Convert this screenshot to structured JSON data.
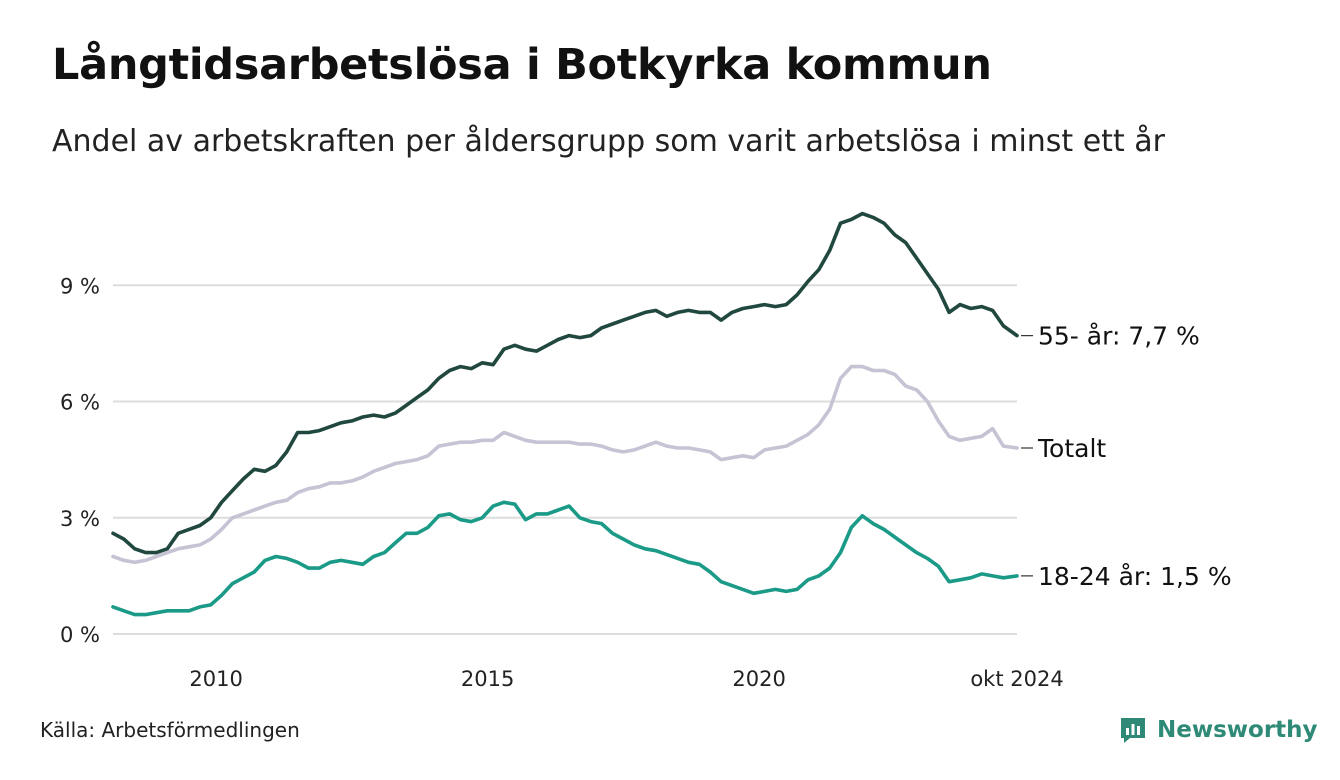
{
  "title": "Långtidsarbetslösa i Botkyrka kommun",
  "subtitle": "Andel av arbetskraften per åldersgrupp som varit arbetslösa i minst ett år",
  "source": "Källa: Arbetsförmedlingen",
  "brand": "Newsworthy",
  "colors": {
    "older": "#21483f",
    "total": "#c6c3d4",
    "young": "#1a9a87",
    "grid": "#dddddd",
    "brand": "#2e8a77"
  },
  "chart_data": {
    "type": "line",
    "title": "Långtidsarbetslösa i Botkyrka kommun",
    "xlabel": "",
    "ylabel": "",
    "x_range": [
      2008.1,
      2024.75
    ],
    "ylim": [
      0,
      11.2
    ],
    "y_ticks": [
      0,
      3,
      6,
      9
    ],
    "y_tick_labels": [
      "0 %",
      "3 %",
      "6 %",
      "9 %"
    ],
    "x_ticks": [
      2010,
      2015,
      2020,
      2024.75
    ],
    "x_tick_labels": [
      "2010",
      "2015",
      "2020",
      "okt 2024"
    ],
    "grid": true,
    "series": [
      {
        "name": "55- år",
        "end_label": "55- år: 7,7 %",
        "color_key": "older",
        "points": [
          [
            2008.1,
            2.6
          ],
          [
            2008.3,
            2.45
          ],
          [
            2008.5,
            2.2
          ],
          [
            2008.7,
            2.1
          ],
          [
            2008.9,
            2.1
          ],
          [
            2009.1,
            2.2
          ],
          [
            2009.3,
            2.6
          ],
          [
            2009.5,
            2.7
          ],
          [
            2009.7,
            2.8
          ],
          [
            2009.9,
            3.0
          ],
          [
            2010.1,
            3.4
          ],
          [
            2010.3,
            3.7
          ],
          [
            2010.5,
            4.0
          ],
          [
            2010.7,
            4.25
          ],
          [
            2010.9,
            4.2
          ],
          [
            2011.1,
            4.35
          ],
          [
            2011.3,
            4.7
          ],
          [
            2011.5,
            5.2
          ],
          [
            2011.7,
            5.2
          ],
          [
            2011.9,
            5.25
          ],
          [
            2012.1,
            5.35
          ],
          [
            2012.3,
            5.45
          ],
          [
            2012.5,
            5.5
          ],
          [
            2012.7,
            5.6
          ],
          [
            2012.9,
            5.65
          ],
          [
            2013.1,
            5.6
          ],
          [
            2013.3,
            5.7
          ],
          [
            2013.5,
            5.9
          ],
          [
            2013.7,
            6.1
          ],
          [
            2013.9,
            6.3
          ],
          [
            2014.1,
            6.6
          ],
          [
            2014.3,
            6.8
          ],
          [
            2014.5,
            6.9
          ],
          [
            2014.7,
            6.85
          ],
          [
            2014.9,
            7.0
          ],
          [
            2015.1,
            6.95
          ],
          [
            2015.3,
            7.35
          ],
          [
            2015.5,
            7.45
          ],
          [
            2015.7,
            7.35
          ],
          [
            2015.9,
            7.3
          ],
          [
            2016.1,
            7.45
          ],
          [
            2016.3,
            7.6
          ],
          [
            2016.5,
            7.7
          ],
          [
            2016.7,
            7.65
          ],
          [
            2016.9,
            7.7
          ],
          [
            2017.1,
            7.9
          ],
          [
            2017.3,
            8.0
          ],
          [
            2017.5,
            8.1
          ],
          [
            2017.7,
            8.2
          ],
          [
            2017.9,
            8.3
          ],
          [
            2018.1,
            8.35
          ],
          [
            2018.3,
            8.2
          ],
          [
            2018.5,
            8.3
          ],
          [
            2018.7,
            8.35
          ],
          [
            2018.9,
            8.3
          ],
          [
            2019.1,
            8.3
          ],
          [
            2019.3,
            8.1
          ],
          [
            2019.5,
            8.3
          ],
          [
            2019.7,
            8.4
          ],
          [
            2019.9,
            8.45
          ],
          [
            2020.1,
            8.5
          ],
          [
            2020.3,
            8.45
          ],
          [
            2020.5,
            8.5
          ],
          [
            2020.7,
            8.75
          ],
          [
            2020.9,
            9.1
          ],
          [
            2021.1,
            9.4
          ],
          [
            2021.3,
            9.9
          ],
          [
            2021.5,
            10.6
          ],
          [
            2021.7,
            10.7
          ],
          [
            2021.9,
            10.85
          ],
          [
            2022.1,
            10.75
          ],
          [
            2022.3,
            10.6
          ],
          [
            2022.5,
            10.3
          ],
          [
            2022.7,
            10.1
          ],
          [
            2022.9,
            9.7
          ],
          [
            2023.1,
            9.3
          ],
          [
            2023.3,
            8.9
          ],
          [
            2023.5,
            8.3
          ],
          [
            2023.7,
            8.5
          ],
          [
            2023.9,
            8.4
          ],
          [
            2024.1,
            8.45
          ],
          [
            2024.3,
            8.35
          ],
          [
            2024.5,
            7.95
          ],
          [
            2024.75,
            7.7
          ]
        ]
      },
      {
        "name": "Totalt",
        "end_label": "Totalt",
        "color_key": "total",
        "points": [
          [
            2008.1,
            2.0
          ],
          [
            2008.3,
            1.9
          ],
          [
            2008.5,
            1.85
          ],
          [
            2008.7,
            1.9
          ],
          [
            2008.9,
            2.0
          ],
          [
            2009.1,
            2.1
          ],
          [
            2009.3,
            2.2
          ],
          [
            2009.5,
            2.25
          ],
          [
            2009.7,
            2.3
          ],
          [
            2009.9,
            2.45
          ],
          [
            2010.1,
            2.7
          ],
          [
            2010.3,
            3.0
          ],
          [
            2010.5,
            3.1
          ],
          [
            2010.7,
            3.2
          ],
          [
            2010.9,
            3.3
          ],
          [
            2011.1,
            3.4
          ],
          [
            2011.3,
            3.45
          ],
          [
            2011.5,
            3.65
          ],
          [
            2011.7,
            3.75
          ],
          [
            2011.9,
            3.8
          ],
          [
            2012.1,
            3.9
          ],
          [
            2012.3,
            3.9
          ],
          [
            2012.5,
            3.95
          ],
          [
            2012.7,
            4.05
          ],
          [
            2012.9,
            4.2
          ],
          [
            2013.1,
            4.3
          ],
          [
            2013.3,
            4.4
          ],
          [
            2013.5,
            4.45
          ],
          [
            2013.7,
            4.5
          ],
          [
            2013.9,
            4.6
          ],
          [
            2014.1,
            4.85
          ],
          [
            2014.3,
            4.9
          ],
          [
            2014.5,
            4.95
          ],
          [
            2014.7,
            4.95
          ],
          [
            2014.9,
            5.0
          ],
          [
            2015.1,
            5.0
          ],
          [
            2015.3,
            5.2
          ],
          [
            2015.5,
            5.1
          ],
          [
            2015.7,
            5.0
          ],
          [
            2015.9,
            4.95
          ],
          [
            2016.1,
            4.95
          ],
          [
            2016.3,
            4.95
          ],
          [
            2016.5,
            4.95
          ],
          [
            2016.7,
            4.9
          ],
          [
            2016.9,
            4.9
          ],
          [
            2017.1,
            4.85
          ],
          [
            2017.3,
            4.75
          ],
          [
            2017.5,
            4.7
          ],
          [
            2017.7,
            4.75
          ],
          [
            2017.9,
            4.85
          ],
          [
            2018.1,
            4.95
          ],
          [
            2018.3,
            4.85
          ],
          [
            2018.5,
            4.8
          ],
          [
            2018.7,
            4.8
          ],
          [
            2018.9,
            4.75
          ],
          [
            2019.1,
            4.7
          ],
          [
            2019.3,
            4.5
          ],
          [
            2019.5,
            4.55
          ],
          [
            2019.7,
            4.6
          ],
          [
            2019.9,
            4.55
          ],
          [
            2020.1,
            4.75
          ],
          [
            2020.3,
            4.8
          ],
          [
            2020.5,
            4.85
          ],
          [
            2020.7,
            5.0
          ],
          [
            2020.9,
            5.15
          ],
          [
            2021.1,
            5.4
          ],
          [
            2021.3,
            5.8
          ],
          [
            2021.5,
            6.6
          ],
          [
            2021.7,
            6.9
          ],
          [
            2021.9,
            6.9
          ],
          [
            2022.1,
            6.8
          ],
          [
            2022.3,
            6.8
          ],
          [
            2022.5,
            6.7
          ],
          [
            2022.7,
            6.4
          ],
          [
            2022.9,
            6.3
          ],
          [
            2023.1,
            6.0
          ],
          [
            2023.3,
            5.5
          ],
          [
            2023.5,
            5.1
          ],
          [
            2023.7,
            5.0
          ],
          [
            2023.9,
            5.05
          ],
          [
            2024.1,
            5.1
          ],
          [
            2024.3,
            5.3
          ],
          [
            2024.5,
            4.85
          ],
          [
            2024.75,
            4.8
          ]
        ]
      },
      {
        "name": "18-24 år",
        "end_label": "18-24 år: 1,5 %",
        "color_key": "young",
        "points": [
          [
            2008.1,
            0.7
          ],
          [
            2008.3,
            0.6
          ],
          [
            2008.5,
            0.5
          ],
          [
            2008.7,
            0.5
          ],
          [
            2008.9,
            0.55
          ],
          [
            2009.1,
            0.6
          ],
          [
            2009.3,
            0.6
          ],
          [
            2009.5,
            0.6
          ],
          [
            2009.7,
            0.7
          ],
          [
            2009.9,
            0.75
          ],
          [
            2010.1,
            1.0
          ],
          [
            2010.3,
            1.3
          ],
          [
            2010.5,
            1.45
          ],
          [
            2010.7,
            1.6
          ],
          [
            2010.9,
            1.9
          ],
          [
            2011.1,
            2.0
          ],
          [
            2011.3,
            1.95
          ],
          [
            2011.5,
            1.85
          ],
          [
            2011.7,
            1.7
          ],
          [
            2011.9,
            1.7
          ],
          [
            2012.1,
            1.85
          ],
          [
            2012.3,
            1.9
          ],
          [
            2012.5,
            1.85
          ],
          [
            2012.7,
            1.8
          ],
          [
            2012.9,
            2.0
          ],
          [
            2013.1,
            2.1
          ],
          [
            2013.3,
            2.35
          ],
          [
            2013.5,
            2.6
          ],
          [
            2013.7,
            2.6
          ],
          [
            2013.9,
            2.75
          ],
          [
            2014.1,
            3.05
          ],
          [
            2014.3,
            3.1
          ],
          [
            2014.5,
            2.95
          ],
          [
            2014.7,
            2.9
          ],
          [
            2014.9,
            3.0
          ],
          [
            2015.1,
            3.3
          ],
          [
            2015.3,
            3.4
          ],
          [
            2015.5,
            3.35
          ],
          [
            2015.7,
            2.95
          ],
          [
            2015.9,
            3.1
          ],
          [
            2016.1,
            3.1
          ],
          [
            2016.3,
            3.2
          ],
          [
            2016.5,
            3.3
          ],
          [
            2016.7,
            3.0
          ],
          [
            2016.9,
            2.9
          ],
          [
            2017.1,
            2.85
          ],
          [
            2017.3,
            2.6
          ],
          [
            2017.5,
            2.45
          ],
          [
            2017.7,
            2.3
          ],
          [
            2017.9,
            2.2
          ],
          [
            2018.1,
            2.15
          ],
          [
            2018.3,
            2.05
          ],
          [
            2018.5,
            1.95
          ],
          [
            2018.7,
            1.85
          ],
          [
            2018.9,
            1.8
          ],
          [
            2019.1,
            1.6
          ],
          [
            2019.3,
            1.35
          ],
          [
            2019.5,
            1.25
          ],
          [
            2019.7,
            1.15
          ],
          [
            2019.9,
            1.05
          ],
          [
            2020.1,
            1.1
          ],
          [
            2020.3,
            1.15
          ],
          [
            2020.5,
            1.1
          ],
          [
            2020.7,
            1.15
          ],
          [
            2020.9,
            1.4
          ],
          [
            2021.1,
            1.5
          ],
          [
            2021.3,
            1.7
          ],
          [
            2021.5,
            2.1
          ],
          [
            2021.7,
            2.75
          ],
          [
            2021.9,
            3.05
          ],
          [
            2022.1,
            2.85
          ],
          [
            2022.3,
            2.7
          ],
          [
            2022.5,
            2.5
          ],
          [
            2022.7,
            2.3
          ],
          [
            2022.9,
            2.1
          ],
          [
            2023.1,
            1.95
          ],
          [
            2023.3,
            1.75
          ],
          [
            2023.5,
            1.35
          ],
          [
            2023.7,
            1.4
          ],
          [
            2023.9,
            1.45
          ],
          [
            2024.1,
            1.55
          ],
          [
            2024.3,
            1.5
          ],
          [
            2024.5,
            1.45
          ],
          [
            2024.75,
            1.5
          ]
        ]
      }
    ]
  }
}
